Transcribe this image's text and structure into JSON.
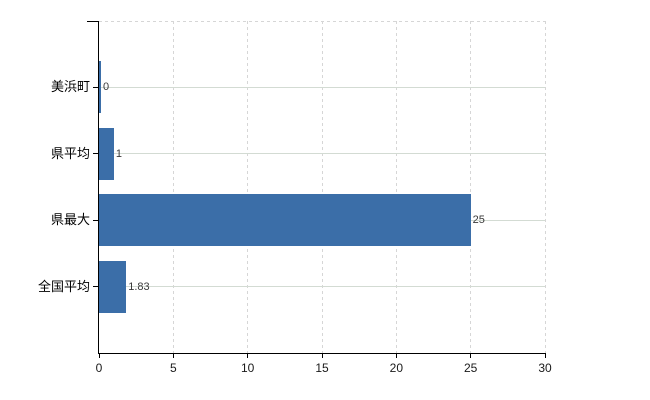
{
  "chart_data": {
    "type": "bar",
    "orientation": "horizontal",
    "title": "",
    "categories": [
      "美浜町",
      "県平均",
      "県最大",
      "全国平均"
    ],
    "values": [
      0,
      1,
      25,
      1.83
    ],
    "value_labels": [
      "0",
      "1",
      "25",
      "1.83"
    ],
    "xlabel": "",
    "ylabel": "",
    "xlim": [
      0,
      30
    ],
    "xticks": [
      0,
      5,
      10,
      15,
      20,
      25,
      30
    ],
    "grid": {
      "vertical": "dashed light gray at every x tick",
      "horizontal": "solid light gray at each category center",
      "top_border": "dashed light gray"
    },
    "legend": "none",
    "colors": {
      "bar": "#3b6ea8",
      "axis": "#000000",
      "grid_vertical": "#d6d6d6",
      "grid_horizontal": "#d3dbd3",
      "category_text": "#000000",
      "tick_text": "#1a1a1a",
      "value_text": "#3a3a3a",
      "background": "#ffffff"
    }
  }
}
